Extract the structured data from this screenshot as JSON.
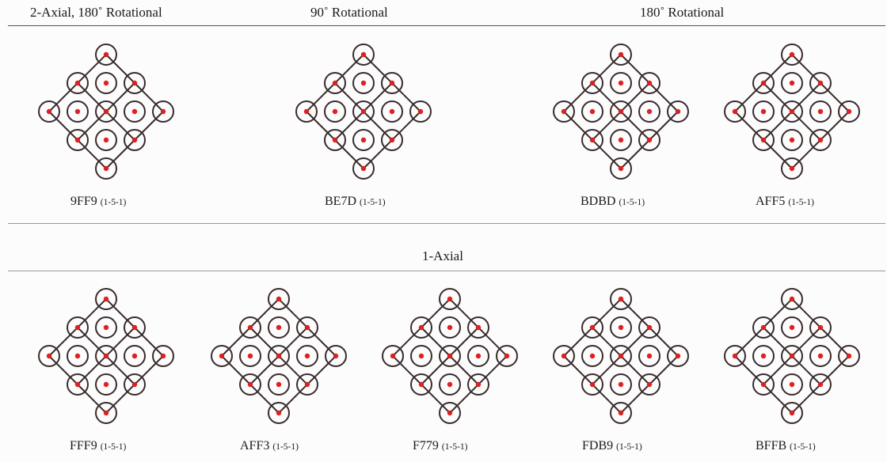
{
  "headers": {
    "col1": "2-Axial, 180˚ Rotational",
    "col2": "90˚ Rotational",
    "col3": "180˚ Rotational"
  },
  "section2_label": "1-Axial",
  "subtitle": "(1-5-1)",
  "colors": {
    "line": "#3a2b2b",
    "dot": "#e02020"
  },
  "row1": [
    {
      "code": "9FF9",
      "sub": "(1-5-1)"
    },
    {
      "code": "BE7D",
      "sub": "(1-5-1)"
    },
    {
      "code": "BDBD",
      "sub": "(1-5-1)"
    },
    {
      "code": "AFF5",
      "sub": "(1-5-1)"
    }
  ],
  "row2": [
    {
      "code": "FFF9",
      "sub": "(1-5-1)"
    },
    {
      "code": "AFF3",
      "sub": "(1-5-1)"
    },
    {
      "code": "F779",
      "sub": "(1-5-1)"
    },
    {
      "code": "FDB9",
      "sub": "(1-5-1)"
    },
    {
      "code": "BFFB",
      "sub": "(1-5-1)"
    }
  ]
}
